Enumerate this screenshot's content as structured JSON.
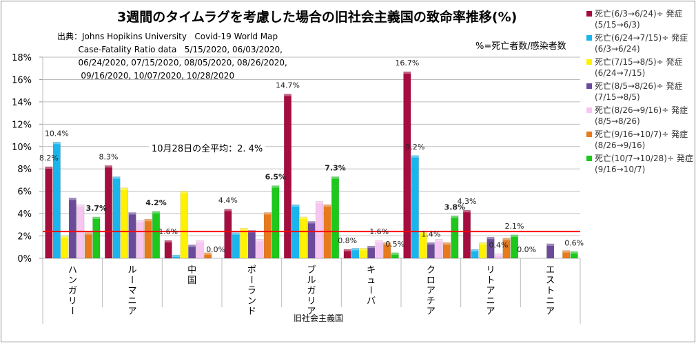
{
  "chart_data": {
    "type": "bar",
    "title": "3週間のタイムラグを考慮した場合の旧社会主義国の致命率推移(%)",
    "xlabel": "旧社会主義国",
    "ylabel": "",
    "ylim": [
      0,
      18
    ],
    "yticks": [
      "0%",
      "2%",
      "4%",
      "6%",
      "8%",
      "10%",
      "12%",
      "14%",
      "16%",
      "18%"
    ],
    "grid": true,
    "legend_position": "right",
    "categories": [
      "ハンガリー",
      "ルーマニア",
      "中国",
      "ポーランド",
      "ブルガリア",
      "キューバ",
      "クロアチア",
      "リトアニア",
      "エストニア"
    ],
    "series": [
      {
        "name": "死亡(6/3→6/24)÷発症(5/15→6/3)",
        "legend_line1": "死亡(6/3→6/24)÷ 発症",
        "legend_line2": "(5/15→6/3)",
        "color": "#A50D3E",
        "values": [
          8.2,
          8.3,
          1.6,
          4.4,
          14.7,
          0.8,
          16.7,
          4.3,
          0.0
        ]
      },
      {
        "name": "死亡(6/24→7/15)÷発症(6/3→6/24)",
        "legend_line1": "死亡(6/24→7/15)÷ 発症",
        "legend_line2": "(6/3→6/24)",
        "color": "#1BB5EE",
        "values": [
          10.4,
          7.3,
          0.3,
          2.3,
          4.8,
          0.9,
          9.2,
          0.8,
          0.0
        ]
      },
      {
        "name": "死亡(7/15→8/5)÷発症(6/24→7/15)",
        "legend_line1": "死亡(7/15→8/5)÷ 発症",
        "legend_line2": "(6/24→7/15)",
        "color": "#FFF200",
        "values": [
          2.0,
          6.3,
          6.0,
          2.7,
          3.7,
          0.9,
          2.4,
          1.4,
          0.0
        ]
      },
      {
        "name": "死亡(8/5→8/26)÷発症(7/15→8/5)",
        "legend_line1": "死亡(8/5→8/26)÷ 発症",
        "legend_line2": "(7/15→8/5)",
        "color": "#6B4A9A",
        "values": [
          5.4,
          4.1,
          1.2,
          2.5,
          3.3,
          1.1,
          1.4,
          1.9,
          1.3
        ]
      },
      {
        "name": "死亡(8/26→9/16)÷発症(8/5→8/26)",
        "legend_line1": "死亡(8/26→9/16)÷ 発症",
        "legend_line2": "(8/5→8/26)",
        "color": "#F7C6F0",
        "values": [
          4.8,
          3.4,
          1.6,
          1.7,
          5.1,
          1.6,
          1.7,
          0.4,
          0.0
        ]
      },
      {
        "name": "死亡(9/16→10/7)÷発症(8/26→9/16)",
        "legend_line1": "死亡(9/16→10/7)÷ 発症",
        "legend_line2": "(8/26→9/16)",
        "color": "#E87A1E",
        "values": [
          2.3,
          3.5,
          0.5,
          4.1,
          4.8,
          1.4,
          1.4,
          1.8,
          0.7
        ]
      },
      {
        "name": "死亡(10/7→10/28)÷発症(9/16→10/7)",
        "legend_line1": "死亡(10/7→10/28)÷ 発症",
        "legend_line2": "(9/16→10/7)",
        "color": "#1DC81D",
        "values": [
          3.7,
          4.2,
          0.0,
          6.5,
          7.3,
          0.5,
          3.8,
          2.1,
          0.6
        ]
      }
    ],
    "data_labels": [
      {
        "category": 0,
        "series": 0,
        "text": "8.2%",
        "bold": false
      },
      {
        "category": 0,
        "series": 1,
        "text": "10.4%",
        "bold": false
      },
      {
        "category": 0,
        "series": 6,
        "text": "3.7%",
        "bold": true
      },
      {
        "category": 1,
        "series": 0,
        "text": "8.3%",
        "bold": false
      },
      {
        "category": 1,
        "series": 6,
        "text": "4.2%",
        "bold": true
      },
      {
        "category": 2,
        "series": 0,
        "text": "1.6%",
        "bold": false
      },
      {
        "category": 2,
        "series": 6,
        "text": "0.0%",
        "bold": false
      },
      {
        "category": 3,
        "series": 0,
        "text": "4.4%",
        "bold": false
      },
      {
        "category": 3,
        "series": 6,
        "text": "6.5%",
        "bold": true
      },
      {
        "category": 4,
        "series": 0,
        "text": "14.7%",
        "bold": false
      },
      {
        "category": 4,
        "series": 6,
        "text": "7.3%",
        "bold": true
      },
      {
        "category": 5,
        "series": 0,
        "text": "0.8%",
        "bold": false
      },
      {
        "category": 5,
        "series": 4,
        "text": "1.6%",
        "bold": false
      },
      {
        "category": 5,
        "series": 6,
        "text": "0.5%",
        "bold": false
      },
      {
        "category": 6,
        "series": 0,
        "text": "16.7%",
        "bold": false
      },
      {
        "category": 6,
        "series": 1,
        "text": "9.2%",
        "bold": false
      },
      {
        "category": 6,
        "series": 3,
        "text": "1.4%",
        "bold": false
      },
      {
        "category": 6,
        "series": 6,
        "text": "3.8%",
        "bold": true
      },
      {
        "category": 7,
        "series": 0,
        "text": "4.3%",
        "bold": false
      },
      {
        "category": 7,
        "series": 4,
        "text": "0.4%",
        "bold": false
      },
      {
        "category": 7,
        "series": 6,
        "text": "2.1%",
        "bold": false
      },
      {
        "category": 8,
        "series": 0,
        "text": "0.0%",
        "bold": false
      },
      {
        "category": 8,
        "series": 6,
        "text": "0.6%",
        "bold": false
      }
    ],
    "reference_line": {
      "value": 2.4,
      "color": "#FF0000",
      "label": "10月28日の全平均：2. 4%"
    },
    "annotations": {
      "source": "出典：Johns Hopikins University   Covid-19 World Map\n        Case-Fatality Ratio data   5/15/2020, 06/03/2020,\n        06/24/2020, 07/15/2020, 08/05/2020, 08/26/2020,\n         09/16/2020, 10/07/2020, 10/28/2020",
      "note": "%=死亡者数/感染者数"
    }
  }
}
